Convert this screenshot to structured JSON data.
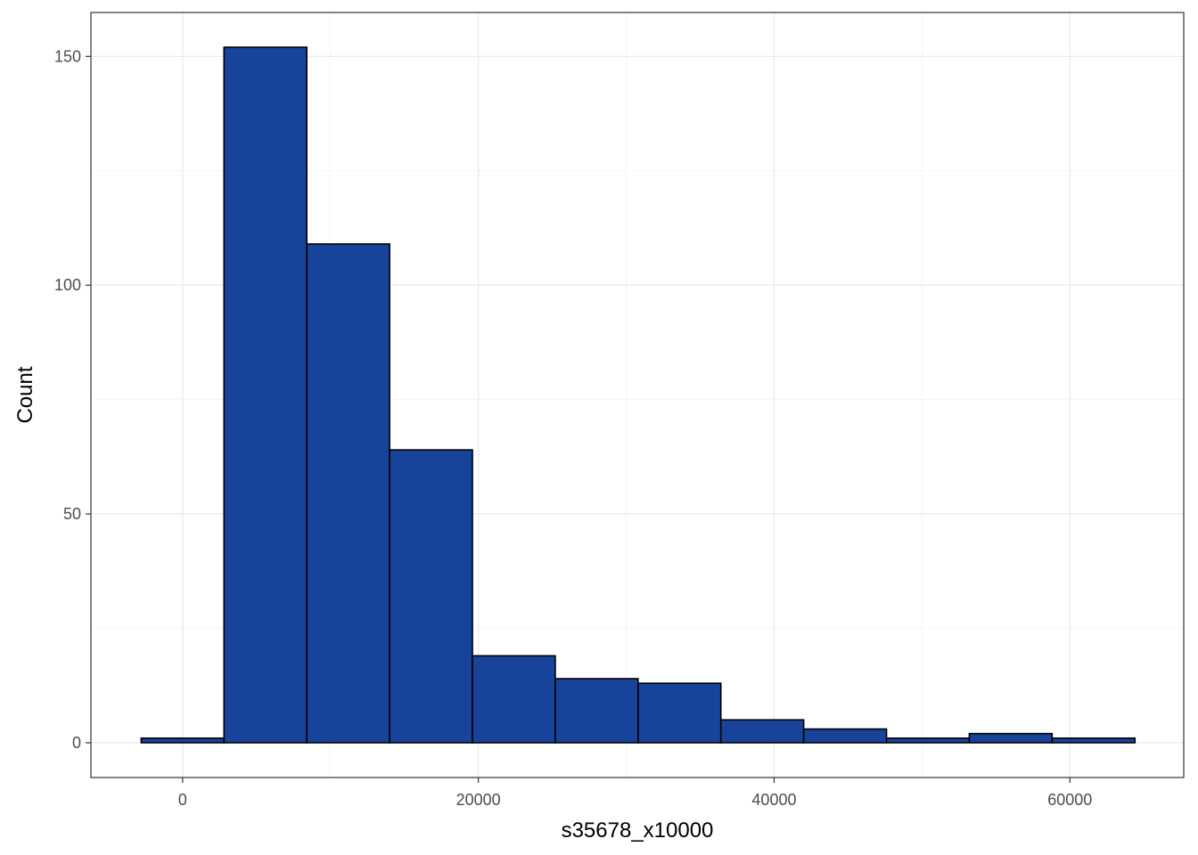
{
  "chart_data": {
    "type": "bar",
    "title": "",
    "xlabel": "s35678_x10000",
    "ylabel": "Count",
    "xlim": [
      -6200,
      67700
    ],
    "ylim": [
      -7.6,
      159.6
    ],
    "x_ticks": [
      0,
      20000,
      40000,
      60000
    ],
    "x_tick_labels": [
      "0",
      "20000",
      "40000",
      "60000"
    ],
    "y_ticks": [
      0,
      50,
      100,
      150
    ],
    "y_tick_labels": [
      "0",
      "50",
      "100",
      "150"
    ],
    "grid": true,
    "bar_fill": "#17439b",
    "bar_outline": "#000000",
    "bins": [
      {
        "x_start": -2800,
        "x_end": 2800,
        "count": 1
      },
      {
        "x_start": 2800,
        "x_end": 8400,
        "count": 152
      },
      {
        "x_start": 8400,
        "x_end": 14000,
        "count": 109
      },
      {
        "x_start": 14000,
        "x_end": 19600,
        "count": 64
      },
      {
        "x_start": 19600,
        "x_end": 25200,
        "count": 19
      },
      {
        "x_start": 25200,
        "x_end": 30800,
        "count": 14
      },
      {
        "x_start": 30800,
        "x_end": 36400,
        "count": 13
      },
      {
        "x_start": 36400,
        "x_end": 42000,
        "count": 5
      },
      {
        "x_start": 42000,
        "x_end": 47600,
        "count": 3
      },
      {
        "x_start": 47600,
        "x_end": 53200,
        "count": 1
      },
      {
        "x_start": 53200,
        "x_end": 58800,
        "count": 2
      },
      {
        "x_start": 58800,
        "x_end": 64400,
        "count": 1
      }
    ]
  }
}
